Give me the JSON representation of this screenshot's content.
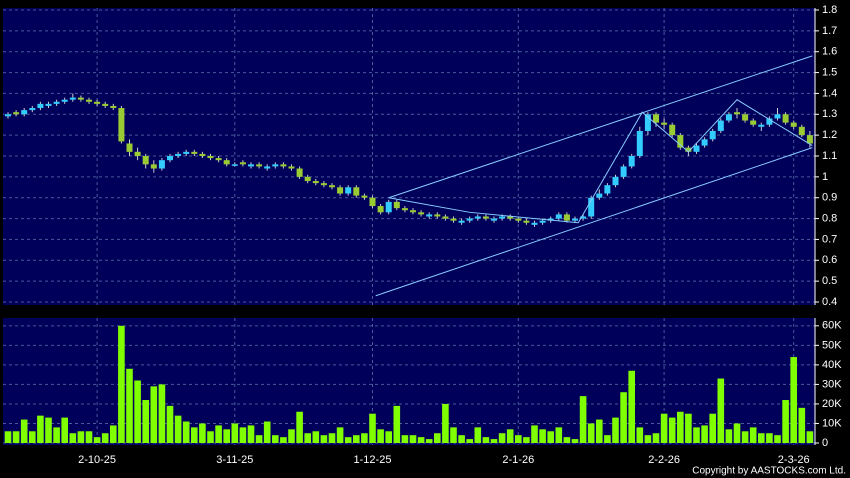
{
  "chart_data": {
    "type": "candlestick",
    "categories": [
      null,
      null,
      null,
      null,
      null,
      null,
      null,
      null,
      null,
      null,
      null,
      "2-10-25",
      null,
      null,
      null,
      null,
      null,
      null,
      null,
      null,
      null,
      null,
      null,
      null,
      null,
      null,
      null,
      null,
      "3-11-25",
      null,
      null,
      null,
      null,
      null,
      null,
      null,
      null,
      null,
      null,
      null,
      null,
      null,
      null,
      null,
      null,
      "1-12-25",
      null,
      null,
      null,
      null,
      null,
      null,
      null,
      null,
      null,
      null,
      null,
      null,
      null,
      null,
      null,
      null,
      null,
      "2-1-26",
      null,
      null,
      null,
      null,
      null,
      null,
      null,
      null,
      null,
      null,
      null,
      null,
      null,
      null,
      null,
      null,
      null,
      "2-2-26",
      null,
      null,
      null,
      null,
      null,
      null,
      null,
      null,
      null,
      null,
      null,
      null,
      null,
      null,
      null,
      "2-3-26",
      null,
      null
    ],
    "open": [
      1.29,
      1.31,
      1.3,
      1.32,
      1.33,
      1.34,
      1.35,
      1.36,
      1.37,
      1.38,
      1.37,
      1.36,
      1.35,
      1.34,
      1.33,
      1.16,
      1.12,
      1.1,
      1.06,
      1.04,
      1.08,
      1.1,
      1.11,
      1.12,
      1.11,
      1.1,
      1.09,
      1.08,
      1.06,
      1.07,
      1.05,
      1.06,
      1.04,
      1.05,
      1.06,
      1.05,
      1.04,
      1.0,
      0.98,
      0.97,
      0.96,
      0.95,
      0.92,
      0.95,
      0.91,
      0.9,
      0.86,
      0.83,
      0.88,
      0.85,
      0.84,
      0.83,
      0.81,
      0.82,
      0.81,
      0.8,
      0.78,
      0.79,
      0.8,
      0.81,
      0.79,
      0.8,
      0.81,
      0.8,
      0.79,
      0.77,
      0.78,
      0.79,
      0.8,
      0.82,
      0.79,
      0.8,
      0.81,
      0.9,
      0.92,
      0.96,
      1.0,
      1.05,
      1.1,
      1.22,
      1.3,
      1.26,
      1.25,
      1.2,
      1.14,
      1.12,
      1.15,
      1.18,
      1.22,
      1.27,
      1.31,
      1.3,
      1.27,
      1.24,
      1.25,
      1.28,
      1.3,
      1.26,
      1.24,
      1.2
    ],
    "high": [
      1.31,
      1.32,
      1.33,
      1.34,
      1.36,
      1.36,
      1.37,
      1.38,
      1.4,
      1.39,
      1.38,
      1.37,
      1.36,
      1.35,
      1.34,
      1.18,
      1.14,
      1.11,
      1.08,
      1.09,
      1.11,
      1.12,
      1.13,
      1.13,
      1.12,
      1.11,
      1.1,
      1.09,
      1.07,
      1.08,
      1.07,
      1.07,
      1.06,
      1.07,
      1.07,
      1.06,
      1.05,
      1.01,
      0.99,
      0.98,
      0.97,
      0.96,
      0.96,
      0.96,
      0.92,
      0.91,
      0.87,
      0.89,
      0.89,
      0.86,
      0.85,
      0.84,
      0.83,
      0.83,
      0.82,
      0.81,
      0.8,
      0.81,
      0.82,
      0.82,
      0.81,
      0.82,
      0.82,
      0.81,
      0.8,
      0.79,
      0.8,
      0.81,
      0.83,
      0.83,
      0.81,
      0.82,
      0.91,
      0.94,
      0.97,
      1.01,
      1.06,
      1.11,
      1.24,
      1.31,
      1.31,
      1.28,
      1.26,
      1.21,
      1.15,
      1.16,
      1.19,
      1.23,
      1.28,
      1.31,
      1.33,
      1.31,
      1.28,
      1.26,
      1.29,
      1.33,
      1.31,
      1.27,
      1.25,
      1.22
    ],
    "low": [
      1.28,
      1.29,
      1.29,
      1.31,
      1.32,
      1.33,
      1.34,
      1.35,
      1.36,
      1.36,
      1.35,
      1.34,
      1.33,
      1.32,
      1.16,
      1.1,
      1.08,
      1.04,
      1.02,
      1.03,
      1.07,
      1.09,
      1.1,
      1.1,
      1.09,
      1.08,
      1.07,
      1.05,
      1.05,
      1.05,
      1.04,
      1.04,
      1.03,
      1.04,
      1.04,
      1.03,
      0.99,
      0.97,
      0.96,
      0.95,
      0.94,
      0.91,
      0.91,
      0.9,
      0.89,
      0.85,
      0.82,
      0.82,
      0.84,
      0.83,
      0.82,
      0.81,
      0.8,
      0.8,
      0.79,
      0.78,
      0.77,
      0.78,
      0.79,
      0.79,
      0.78,
      0.79,
      0.79,
      0.78,
      0.77,
      0.76,
      0.77,
      0.78,
      0.79,
      0.78,
      0.78,
      0.79,
      0.8,
      0.89,
      0.91,
      0.95,
      0.99,
      1.04,
      1.09,
      1.2,
      1.24,
      1.23,
      1.19,
      1.13,
      1.1,
      1.11,
      1.14,
      1.17,
      1.21,
      1.26,
      1.28,
      1.26,
      1.24,
      1.22,
      1.24,
      1.27,
      1.25,
      1.23,
      1.19,
      1.14
    ],
    "close": [
      1.3,
      1.3,
      1.32,
      1.33,
      1.35,
      1.35,
      1.36,
      1.37,
      1.38,
      1.37,
      1.36,
      1.35,
      1.34,
      1.33,
      1.17,
      1.12,
      1.1,
      1.06,
      1.04,
      1.08,
      1.1,
      1.11,
      1.12,
      1.11,
      1.1,
      1.09,
      1.08,
      1.06,
      1.06,
      1.06,
      1.06,
      1.05,
      1.05,
      1.06,
      1.05,
      1.04,
      1.0,
      0.98,
      0.97,
      0.96,
      0.95,
      0.92,
      0.95,
      0.91,
      0.9,
      0.86,
      0.83,
      0.88,
      0.85,
      0.84,
      0.83,
      0.82,
      0.82,
      0.81,
      0.8,
      0.79,
      0.79,
      0.8,
      0.81,
      0.8,
      0.8,
      0.81,
      0.8,
      0.79,
      0.78,
      0.78,
      0.79,
      0.8,
      0.82,
      0.79,
      0.8,
      0.81,
      0.9,
      0.92,
      0.96,
      1.0,
      1.05,
      1.1,
      1.22,
      1.3,
      1.26,
      1.25,
      1.2,
      1.14,
      1.12,
      1.15,
      1.18,
      1.22,
      1.27,
      1.3,
      1.3,
      1.27,
      1.25,
      1.25,
      1.28,
      1.3,
      1.26,
      1.24,
      1.2,
      1.16
    ],
    "volume": [
      6000,
      6000,
      12000,
      6000,
      14000,
      13000,
      8000,
      13000,
      5000,
      6000,
      6000,
      3000,
      5000,
      9000,
      60000,
      38000,
      32000,
      22000,
      29000,
      30000,
      19000,
      14000,
      11000,
      8000,
      10000,
      6000,
      9000,
      7000,
      10000,
      8000,
      9000,
      4000,
      11000,
      4000,
      3000,
      7000,
      16000,
      5000,
      6000,
      4000,
      5000,
      8000,
      3000,
      4000,
      5000,
      15000,
      7000,
      6000,
      19000,
      4000,
      4000,
      3000,
      2000,
      5000,
      20000,
      8000,
      4000,
      2000,
      8000,
      3000,
      2000,
      5000,
      7000,
      4000,
      3000,
      9000,
      7000,
      6000,
      8000,
      3000,
      2000,
      24000,
      10000,
      12000,
      4000,
      13000,
      26000,
      37000,
      8000,
      4000,
      5000,
      15000,
      13000,
      16000,
      15000,
      8000,
      9000,
      15000,
      33000,
      7000,
      10000,
      6000,
      8000,
      5000,
      5000,
      4000,
      22000,
      44000,
      18000,
      6000
    ],
    "up_color": "#33ccff",
    "down_color": "#99cc33",
    "volume_color": "#80ff00",
    "ylim": [
      0.4,
      1.8
    ],
    "yticks": [
      0.4,
      0.5,
      0.6,
      0.7,
      0.8,
      0.9,
      1,
      1.1,
      1.2,
      1.3,
      1.4,
      1.5,
      1.6,
      1.7,
      1.8
    ],
    "volume_ylim": [
      0,
      64000
    ],
    "volume_ticks": [
      0,
      {
        "value": 10000,
        "label": "10K"
      },
      {
        "value": 20000,
        "label": "20K"
      },
      {
        "value": 30000,
        "label": "30K"
      },
      {
        "value": 40000,
        "label": "40K"
      },
      {
        "value": 50000,
        "label": "50K"
      },
      {
        "value": 60000,
        "label": "60K"
      }
    ],
    "grid": true,
    "annotation_lines": [
      {
        "x": [
          45.4,
          99.3
        ],
        "y": [
          0.43,
          1.14
        ]
      },
      {
        "x": [
          47,
          99.3
        ],
        "y": [
          0.9,
          1.58
        ]
      },
      {
        "x": [
          47,
          57,
          70.4,
          78.3,
          84,
          90,
          99.3
        ],
        "y": [
          0.9,
          0.83,
          0.78,
          1.31,
          1.12,
          1.37,
          1.15
        ]
      }
    ],
    "copyright": "Copyright by AASTOCKS.com Ltd."
  }
}
